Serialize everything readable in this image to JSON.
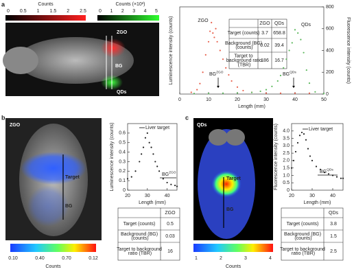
{
  "figure": {
    "panel_labels": [
      "a",
      "b",
      "c"
    ],
    "colorbars": [
      {
        "title": "Counts",
        "labels": [
          "0",
          "0.5",
          "1",
          "1.5",
          "2",
          "2.5"
        ]
      },
      {
        "title": "Counts (×10²)",
        "labels": [
          "0",
          "1",
          "2",
          "3",
          "4",
          "5"
        ]
      },
      {
        "title": "Counts",
        "labels": [
          "0.10",
          "0.40",
          "0.70",
          "0.12"
        ]
      },
      {
        "title": "Counts",
        "labels": [
          "1",
          "2",
          "3",
          "4"
        ]
      }
    ],
    "images": [
      {
        "labels": [
          "ZGO",
          "BG",
          "QDs"
        ]
      },
      {
        "labels": [
          "ZGO",
          "Target",
          "BG"
        ]
      },
      {
        "labels": [
          "QDs",
          "Target",
          "BG"
        ]
      }
    ],
    "tables": [
      {
        "rows": [
          [
            "",
            "ZGO",
            "QDs"
          ],
          [
            "Target (counts)",
            "3.7",
            "658.8"
          ],
          [
            "Background (BG) (counts)",
            "0.02",
            "39.4"
          ],
          [
            "Target to background ratio (TBR)",
            "186",
            "16.7"
          ]
        ]
      },
      {
        "rows": [
          [
            "",
            "ZGO"
          ],
          [
            "Target (counts)",
            "0.5"
          ],
          [
            "Background (BG) (counts)",
            "0.03"
          ],
          [
            "Target to background ratio (TBR)",
            "16"
          ]
        ]
      },
      {
        "rows": [
          [
            "",
            "QDs"
          ],
          [
            "Target (counts)",
            "3.8"
          ],
          [
            "Background (BG) (counts)",
            "1.5"
          ],
          [
            "Target to background ratio (TBR)",
            "2.5"
          ]
        ]
      }
    ]
  },
  "chart_data": [
    {
      "type": "scatter",
      "x_label": "Length (mm)",
      "y_label": "Luminescence intensity (counts)",
      "y2_label": "Fluorescence intensity (counts)",
      "xlim": [
        0,
        50
      ],
      "xticks": [
        0,
        10,
        20,
        30,
        40,
        50
      ],
      "ylim": [
        0,
        1
      ],
      "y2lim": [
        0,
        800
      ],
      "y2ticks": [
        0,
        200,
        400,
        600,
        800
      ],
      "series": [
        {
          "name": "ZGO",
          "color": "#e8604c",
          "x": [
            4,
            6,
            7,
            8,
            9,
            10,
            10.5,
            11,
            11.5,
            12,
            12.5,
            13,
            14,
            15,
            16,
            17,
            18,
            20,
            22,
            25,
            30,
            35,
            40,
            45
          ],
          "values": [
            0.02,
            0.05,
            0.12,
            0.25,
            0.45,
            0.6,
            0.72,
            0.82,
            0.7,
            0.65,
            0.75,
            0.6,
            0.5,
            0.4,
            0.3,
            0.22,
            0.15,
            0.08,
            0.04,
            0.02,
            0.01,
            0.01,
            0.01,
            0.01
          ]
        },
        {
          "name": "QDs",
          "color": "#5cb85c",
          "axis": "y2",
          "x": [
            5,
            10,
            15,
            20,
            25,
            28,
            30,
            32,
            34,
            35,
            36,
            37,
            38,
            39,
            40,
            41,
            42,
            43,
            44,
            45,
            47,
            50
          ],
          "values": [
            5,
            5,
            8,
            10,
            15,
            25,
            40,
            70,
            120,
            170,
            240,
            320,
            400,
            470,
            590,
            560,
            500,
            380,
            220,
            100,
            20,
            5
          ]
        }
      ],
      "annotations": [
        {
          "text": "BG",
          "sup": "ZGO"
        },
        {
          "text": "BG",
          "sup": "QDs"
        }
      ]
    },
    {
      "type": "scatter",
      "x_label": "Length (mm)",
      "y_label": "Luminescence intensity (counts)",
      "xlim": [
        20,
        45
      ],
      "xticks": [
        20,
        30,
        40
      ],
      "ylim": [
        0,
        0.7
      ],
      "yticks": [
        0,
        0.1,
        0.2,
        0.3,
        0.4,
        0.5,
        0.6
      ],
      "series": [
        {
          "color": "#222222",
          "x": [
            20,
            22,
            24,
            26,
            27,
            28,
            29,
            30,
            31,
            32,
            33,
            34,
            35,
            36,
            38,
            40,
            42,
            44,
            45
          ],
          "values": [
            0.12,
            0.14,
            0.2,
            0.3,
            0.38,
            0.45,
            0.55,
            0.6,
            0.5,
            0.45,
            0.38,
            0.3,
            0.25,
            0.2,
            0.12,
            0.08,
            0.06,
            0.05,
            0.04
          ]
        }
      ],
      "annotations": [
        {
          "text": "Liver target"
        },
        {
          "text": "BG",
          "sup": "ZGO"
        }
      ]
    },
    {
      "type": "scatter",
      "x_label": "Length (mm)",
      "y_label": "Fluorescence intensity (counts)",
      "xlim": [
        20,
        45
      ],
      "xticks": [
        20,
        30,
        40
      ],
      "ylim": [
        0,
        4.5
      ],
      "yticks": [
        0,
        0.5,
        {
          "value": 1,
          "label": "1.0"
        },
        1.5,
        {
          "value": 2,
          "label": "2.0"
        },
        2.5,
        {
          "value": 3,
          "label": "3.0"
        },
        3.5,
        {
          "value": 4,
          "label": "4.0"
        }
      ],
      "series": [
        {
          "color": "#222222",
          "x": [
            20,
            21,
            22,
            23,
            24,
            25,
            26,
            27,
            28,
            29,
            30,
            32,
            34,
            36,
            38,
            40,
            42,
            44,
            45
          ],
          "values": [
            1.5,
            2.0,
            2.6,
            3.2,
            3.7,
            3.9,
            3.8,
            3.4,
            2.8,
            2.3,
            2.0,
            1.6,
            1.4,
            1.2,
            1.1,
            1.0,
            0.9,
            0.8,
            0.8
          ]
        }
      ],
      "annotations": [
        {
          "text": "Liver target"
        },
        {
          "text": "BG",
          "sup": "QDs"
        }
      ]
    }
  ]
}
